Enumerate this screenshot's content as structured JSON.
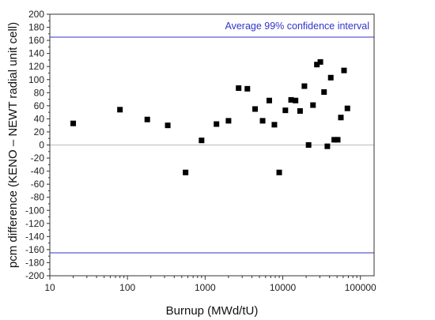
{
  "chart_data": {
    "type": "scatter",
    "xlabel": "Burnup (MWd/tU)",
    "ylabel": "pcm difference (KENO – NEWT radial unit cell)",
    "x_scale": "log",
    "xlim": [
      10,
      150000
    ],
    "ylim": [
      -200,
      200
    ],
    "x_ticks": [
      {
        "value": 10,
        "label": "10"
      },
      {
        "value": 100,
        "label": "100"
      },
      {
        "value": 1000,
        "label": "1000"
      },
      {
        "value": 10000,
        "label": "10000"
      },
      {
        "value": 100000,
        "label": "100000"
      }
    ],
    "y_ticks": [
      {
        "value": 200,
        "label": "200"
      },
      {
        "value": 180,
        "label": "180"
      },
      {
        "value": 160,
        "label": "160"
      },
      {
        "value": 140,
        "label": "140"
      },
      {
        "value": 120,
        "label": "120"
      },
      {
        "value": 100,
        "label": "100"
      },
      {
        "value": 80,
        "label": "80"
      },
      {
        "value": 60,
        "label": "60"
      },
      {
        "value": 40,
        "label": "40"
      },
      {
        "value": 20,
        "label": "20"
      },
      {
        "value": 0,
        "label": "0"
      },
      {
        "value": -20,
        "label": "-20"
      },
      {
        "value": -40,
        "label": "-40"
      },
      {
        "value": -60,
        "label": "-60"
      },
      {
        "value": -80,
        "label": "-80"
      },
      {
        "value": -100,
        "label": "-100"
      },
      {
        "value": -120,
        "label": "-120"
      },
      {
        "value": -140,
        "label": "-140"
      },
      {
        "value": -160,
        "label": "-160"
      },
      {
        "value": -180,
        "label": "-180"
      },
      {
        "value": -200,
        "label": "-200"
      }
    ],
    "grid": false,
    "reference_lines": [
      {
        "y": 165,
        "color": "#3333cc"
      },
      {
        "y": -165,
        "color": "#3333cc"
      },
      {
        "y": 0,
        "color": "#bbbbbb"
      }
    ],
    "annotations": [
      {
        "text": "Average 99% confidence interval",
        "color": "#3333cc"
      }
    ],
    "series": [
      {
        "marker": "square",
        "color": "#000000",
        "points": [
          {
            "x": 20,
            "y": 33
          },
          {
            "x": 80,
            "y": 54
          },
          {
            "x": 180,
            "y": 39
          },
          {
            "x": 330,
            "y": 30
          },
          {
            "x": 560,
            "y": -42
          },
          {
            "x": 900,
            "y": 7
          },
          {
            "x": 1400,
            "y": 32
          },
          {
            "x": 2000,
            "y": 37
          },
          {
            "x": 2700,
            "y": 87
          },
          {
            "x": 3500,
            "y": 86
          },
          {
            "x": 4400,
            "y": 55
          },
          {
            "x": 5500,
            "y": 37
          },
          {
            "x": 6700,
            "y": 68
          },
          {
            "x": 7800,
            "y": 31
          },
          {
            "x": 9000,
            "y": -42
          },
          {
            "x": 10800,
            "y": 53
          },
          {
            "x": 12800,
            "y": 69
          },
          {
            "x": 14600,
            "y": 68
          },
          {
            "x": 16700,
            "y": 52
          },
          {
            "x": 19000,
            "y": 90
          },
          {
            "x": 21500,
            "y": 0
          },
          {
            "x": 24500,
            "y": 61
          },
          {
            "x": 27500,
            "y": 123
          },
          {
            "x": 30500,
            "y": 127
          },
          {
            "x": 34000,
            "y": 81
          },
          {
            "x": 37500,
            "y": -2
          },
          {
            "x": 41500,
            "y": 103
          },
          {
            "x": 46000,
            "y": 8
          },
          {
            "x": 51000,
            "y": 8
          },
          {
            "x": 56000,
            "y": 42
          },
          {
            "x": 61500,
            "y": 114
          },
          {
            "x": 68000,
            "y": 56
          }
        ]
      }
    ]
  }
}
